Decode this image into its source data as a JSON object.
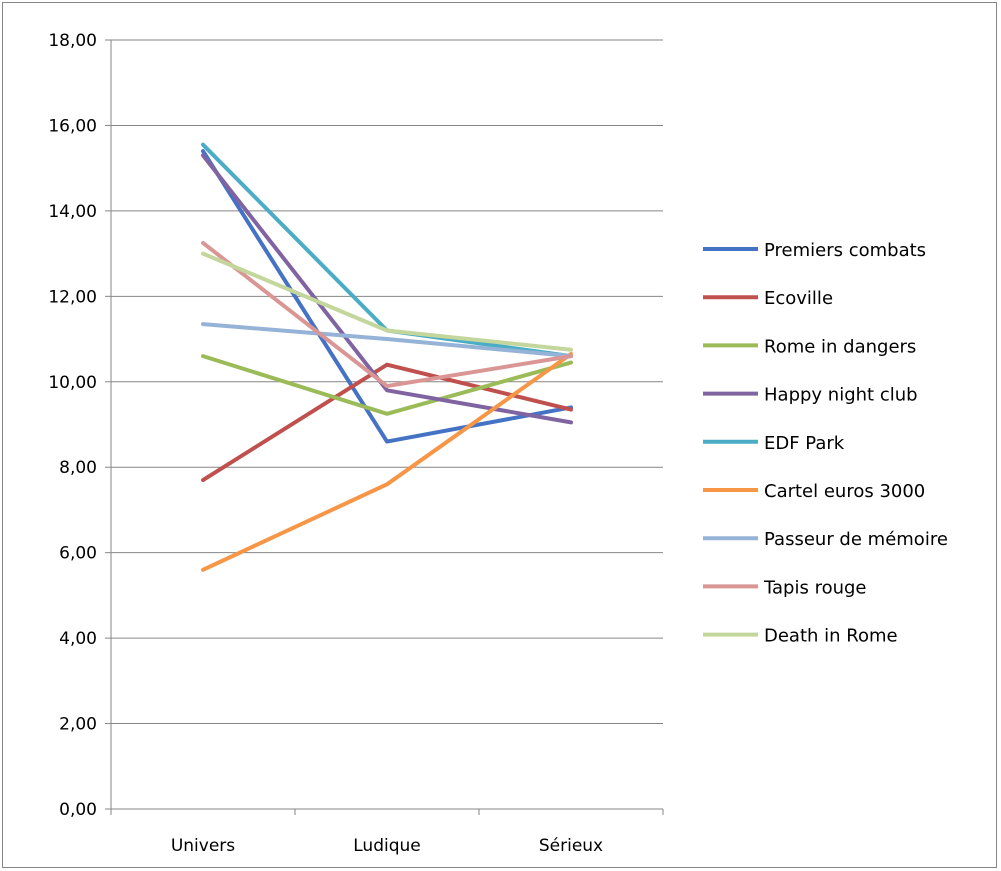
{
  "chart_data": {
    "type": "line",
    "categories": [
      "Univers",
      "Ludique",
      "Sérieux"
    ],
    "ylim": [
      0,
      18
    ],
    "y_ticks": [
      "0,00",
      "2,00",
      "4,00",
      "6,00",
      "8,00",
      "10,00",
      "12,00",
      "14,00",
      "16,00",
      "18,00"
    ],
    "y_tick_values": [
      0,
      2,
      4,
      6,
      8,
      10,
      12,
      14,
      16,
      18
    ],
    "grid": true,
    "legend": "right",
    "series": [
      {
        "name": "Premiers combats",
        "color": "#4472C4",
        "values": [
          15.4,
          8.6,
          9.4
        ]
      },
      {
        "name": "Ecoville",
        "color": "#C0504D",
        "values": [
          7.7,
          10.4,
          9.35
        ]
      },
      {
        "name": "Rome in dangers",
        "color": "#9BBB59",
        "values": [
          10.6,
          9.25,
          10.45
        ]
      },
      {
        "name": "Happy night club",
        "color": "#8064A2",
        "values": [
          15.3,
          9.8,
          9.05
        ]
      },
      {
        "name": "EDF Park",
        "color": "#4BACC6",
        "values": [
          15.55,
          11.2,
          10.6
        ]
      },
      {
        "name": "Cartel euros 3000",
        "color": "#F79646",
        "values": [
          5.6,
          7.6,
          10.65
        ]
      },
      {
        "name": "Passeur de mémoire",
        "color": "#95B3D7",
        "values": [
          11.35,
          11.0,
          10.6
        ]
      },
      {
        "name": "Tapis rouge",
        "color": "#D99694",
        "values": [
          13.25,
          9.9,
          10.6
        ]
      },
      {
        "name": "Death in Rome",
        "color": "#C3D69B",
        "values": [
          13.0,
          11.2,
          10.75
        ]
      }
    ]
  }
}
